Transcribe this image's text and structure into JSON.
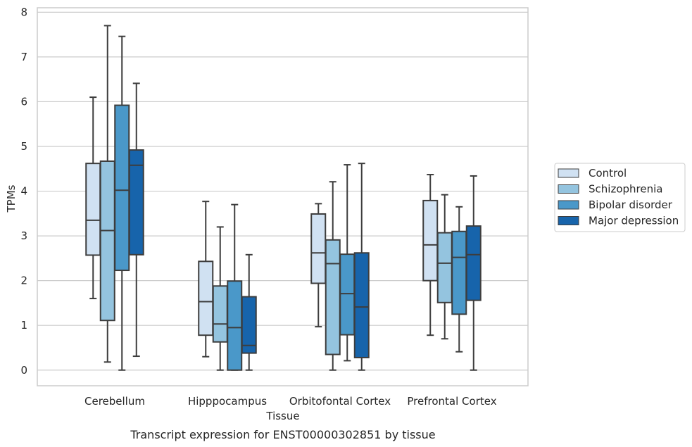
{
  "caption": "Transcript expression for ENST00000302851 by tissue",
  "chart_data": {
    "type": "box",
    "title": "",
    "xlabel": "Tissue",
    "ylabel": "TPMs",
    "ylim": [
      -0.35,
      8.1
    ],
    "yticks": [
      0,
      1,
      2,
      3,
      4,
      5,
      6,
      7,
      8
    ],
    "grid": "horizontal",
    "legend_position": "right",
    "categories": [
      "Cerebellum",
      "Hipppocampus",
      "Orbitofontal Cortex",
      "Prefrontal Cortex"
    ],
    "series": [
      {
        "name": "Control",
        "color": "#d0e1f2",
        "boxes": [
          {
            "whisker_low": 1.6,
            "q1": 2.57,
            "median": 3.35,
            "q3": 4.62,
            "whisker_high": 6.1
          },
          {
            "whisker_low": 0.3,
            "q1": 0.78,
            "median": 1.53,
            "q3": 2.43,
            "whisker_high": 3.77
          },
          {
            "whisker_low": 0.97,
            "q1": 1.94,
            "median": 2.62,
            "q3": 3.49,
            "whisker_high": 3.72
          },
          {
            "whisker_low": 0.78,
            "q1": 2.0,
            "median": 2.8,
            "q3": 3.79,
            "whisker_high": 4.37
          }
        ]
      },
      {
        "name": "Schizophrenia",
        "color": "#94c4df",
        "boxes": [
          {
            "whisker_low": 0.18,
            "q1": 1.11,
            "median": 3.12,
            "q3": 4.67,
            "whisker_high": 7.7
          },
          {
            "whisker_low": 0.0,
            "q1": 0.63,
            "median": 1.03,
            "q3": 1.88,
            "whisker_high": 3.2
          },
          {
            "whisker_low": 0.0,
            "q1": 0.35,
            "median": 2.38,
            "q3": 2.91,
            "whisker_high": 4.21
          },
          {
            "whisker_low": 0.7,
            "q1": 1.51,
            "median": 2.39,
            "q3": 3.07,
            "whisker_high": 3.92
          }
        ]
      },
      {
        "name": "Bipolar disorder",
        "color": "#4a98c9",
        "boxes": [
          {
            "whisker_low": 0.0,
            "q1": 2.23,
            "median": 4.02,
            "q3": 5.92,
            "whisker_high": 7.46
          },
          {
            "whisker_low": 0.0,
            "q1": 0.0,
            "median": 0.95,
            "q3": 1.99,
            "whisker_high": 3.7
          },
          {
            "whisker_low": 0.21,
            "q1": 0.79,
            "median": 1.71,
            "q3": 2.59,
            "whisker_high": 4.59
          },
          {
            "whisker_low": 0.41,
            "q1": 1.25,
            "median": 2.52,
            "q3": 3.1,
            "whisker_high": 3.65
          }
        ]
      },
      {
        "name": "Major depression",
        "color": "#1764ab",
        "boxes": [
          {
            "whisker_low": 0.31,
            "q1": 2.58,
            "median": 4.58,
            "q3": 4.92,
            "whisker_high": 6.41
          },
          {
            "whisker_low": 0.0,
            "q1": 0.38,
            "median": 0.55,
            "q3": 1.64,
            "whisker_high": 2.58
          },
          {
            "whisker_low": 0.0,
            "q1": 0.28,
            "median": 1.41,
            "q3": 2.62,
            "whisker_high": 4.62
          },
          {
            "whisker_low": 0.0,
            "q1": 1.56,
            "median": 2.58,
            "q3": 3.22,
            "whisker_high": 4.34
          }
        ]
      }
    ]
  }
}
